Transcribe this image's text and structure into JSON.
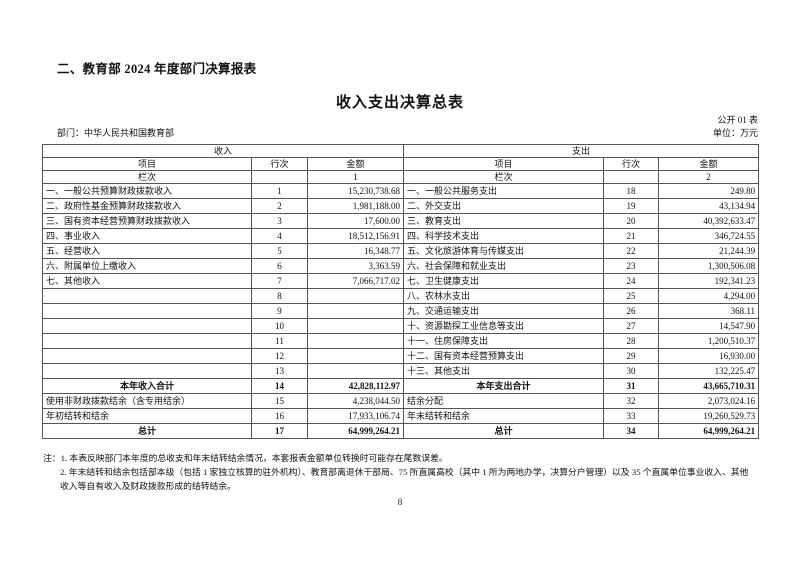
{
  "header": {
    "report_heading": "二、教育部 2024 年度部门决算报表",
    "table_title": "收入支出决算总表",
    "table_no": "公开 01 表",
    "department": "部门：中华人民共和国教育部",
    "unit": "单位：万元"
  },
  "table": {
    "income_header": "收入",
    "expense_header": "支出",
    "col_item": "项目",
    "col_line": "行次",
    "col_amount": "金额",
    "lanci": "栏次",
    "income_col_no": "1",
    "expense_col_no": "2",
    "rows": [
      {
        "l": "一、一般公共预算财政拨款收入",
        "ln": "1",
        "la": "15,230,738.68",
        "r": "一、一般公共服务支出",
        "rn": "18",
        "ra": "249.80"
      },
      {
        "l": "二、政府性基金预算财政拨款收入",
        "ln": "2",
        "la": "1,981,188.00",
        "r": "二、外交支出",
        "rn": "19",
        "ra": "43,134.94"
      },
      {
        "l": "三、国有资本经营预算财政拨款收入",
        "ln": "3",
        "la": "17,600.00",
        "r": "三、教育支出",
        "rn": "20",
        "ra": "40,392,633.47"
      },
      {
        "l": "四、事业收入",
        "ln": "4",
        "la": "18,512,156.91",
        "r": "四、科学技术支出",
        "rn": "21",
        "ra": "346,724.55"
      },
      {
        "l": "五、经营收入",
        "ln": "5",
        "la": "16,348.77",
        "r": "五、文化旅游体育与传媒支出",
        "rn": "22",
        "ra": "21,244.39"
      },
      {
        "l": "六、附属单位上缴收入",
        "ln": "6",
        "la": "3,363.59",
        "r": "六、社会保障和就业支出",
        "rn": "23",
        "ra": "1,300,506.08"
      },
      {
        "l": "七、其他收入",
        "ln": "7",
        "la": "7,066,717.02",
        "r": "七、卫生健康支出",
        "rn": "24",
        "ra": "192,341.23"
      },
      {
        "l": "",
        "ln": "8",
        "la": "",
        "r": "八、农林水支出",
        "rn": "25",
        "ra": "4,294.00"
      },
      {
        "l": "",
        "ln": "9",
        "la": "",
        "r": "九、交通运输支出",
        "rn": "26",
        "ra": "368.11"
      },
      {
        "l": "",
        "ln": "10",
        "la": "",
        "r": "十、资源勘探工业信息等支出",
        "rn": "27",
        "ra": "14,547.90"
      },
      {
        "l": "",
        "ln": "11",
        "la": "",
        "r": "十一、住房保障支出",
        "rn": "28",
        "ra": "1,200,510.37"
      },
      {
        "l": "",
        "ln": "12",
        "la": "",
        "r": "十二、国有资本经营预算支出",
        "rn": "29",
        "ra": "16,930.00"
      },
      {
        "l": "",
        "ln": "13",
        "la": "",
        "r": "十三、其他支出",
        "rn": "30",
        "ra": "132,225.47"
      },
      {
        "l": "本年收入合计",
        "ln": "14",
        "la": "42,828,112.97",
        "r": "本年支出合计",
        "rn": "31",
        "ra": "43,665,710.31",
        "total": true
      },
      {
        "l": "使用非财政拨款结余（含专用结余）",
        "ln": "15",
        "la": "4,238,044.50",
        "r": "结余分配",
        "rn": "32",
        "ra": "2,073,024.16"
      },
      {
        "l": "年初结转和结余",
        "ln": "16",
        "la": "17,933,106.74",
        "r": "年末结转和结余",
        "rn": "33",
        "ra": "19,260,529.73"
      },
      {
        "l": "总计",
        "ln": "17",
        "la": "64,999,264.21",
        "r": "总计",
        "rn": "34",
        "ra": "64,999,264.21",
        "total": true
      }
    ]
  },
  "notes": {
    "note1": "注：1. 本表反映部门本年度的总收支和年末结转结余情况，本套报表金额单位转换时可能存在尾数误差。",
    "note2": "2. 年末结转和结余包括部本级（包括 1 家独立核算的驻外机构）、教育部离退休干部局、75 所直属高校（其中 1 所为两地办学，决算分户管理）以及 35 个直属单位事业收入、其他收入等自有收入及财政拨款形成的结转结余。"
  },
  "page_number": "8"
}
